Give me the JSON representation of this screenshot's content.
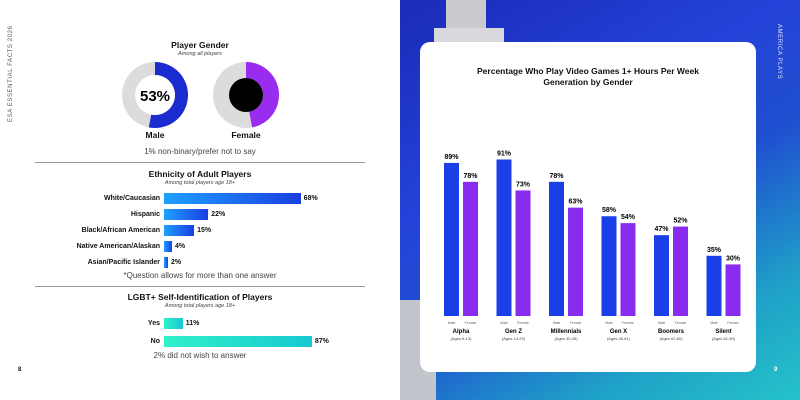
{
  "left_page": {
    "side_label": "ESA ESSENTIAL FACTS 2026",
    "page_number": "8",
    "gender": {
      "title": "Player Gender",
      "subtitle": "Among all players",
      "male_label": "Male",
      "female_label": "Female",
      "male_pct_label": "53%",
      "male_value": 53,
      "female_value": 47,
      "note": "1% non-binary/prefer not to say",
      "colors": {
        "male": "#1a2bd0",
        "female": "#9a2cf0",
        "ring": "#dcdcdc",
        "center": "#000000"
      }
    },
    "ethnicity": {
      "title": "Ethnicity of Adult Players",
      "subtitle": "Among total players age 18+",
      "note": "*Question allows for more than one answer",
      "items": [
        {
          "label": "White/Caucasian",
          "value": 68,
          "value_label": "68%"
        },
        {
          "label": "Hispanic",
          "value": 22,
          "value_label": "22%"
        },
        {
          "label": "Black/African American",
          "value": 15,
          "value_label": "15%"
        },
        {
          "label": "Native American/Alaskan",
          "value": 4,
          "value_label": "4%"
        },
        {
          "label": "Asian/Pacific Islander",
          "value": 2,
          "value_label": "2%"
        }
      ],
      "colors": {
        "from": "#1ea0ff",
        "to": "#1a3fe0"
      }
    },
    "lgbt": {
      "title": "LGBT+ Self-Identification of Players",
      "subtitle": "Among total players age 18+",
      "note": "2% did not wish to answer",
      "items": [
        {
          "label": "Yes",
          "value": 11,
          "value_label": "11%"
        },
        {
          "label": "No",
          "value": 87,
          "value_label": "87%"
        }
      ],
      "colors": {
        "from": "#2ff0c8",
        "to": "#18c9d2"
      }
    }
  },
  "right_page": {
    "side_label": "AMERICA PLAYS",
    "page_number": "9"
  },
  "chart_data": {
    "type": "bar",
    "title": "Percentage Who Play Video Games 1+ Hours Per Week",
    "subtitle": "Generation by Gender",
    "xlabel": "",
    "ylabel": "",
    "ylim": [
      0,
      100
    ],
    "categories": [
      {
        "name": "Alpha",
        "ages": "(Ages 8-13)"
      },
      {
        "name": "Gen Z",
        "ages": "(Ages 14-29)"
      },
      {
        "name": "Millennials",
        "ages": "(Ages 30-45)"
      },
      {
        "name": "Gen X",
        "ages": "(Ages 46-61)"
      },
      {
        "name": "Boomers",
        "ages": "(Ages 62-80)"
      },
      {
        "name": "Silent",
        "ages": "(Ages 81-90)"
      }
    ],
    "series": [
      {
        "name": "Male",
        "values": [
          89,
          91,
          78,
          58,
          47,
          35
        ],
        "labels": [
          "89%",
          "91%",
          "78%",
          "58%",
          "47%",
          "35%"
        ],
        "color": "#1a3fe8"
      },
      {
        "name": "Female",
        "values": [
          78,
          73,
          63,
          54,
          52,
          30
        ],
        "labels": [
          "78%",
          "73%",
          "63%",
          "54%",
          "52%",
          "30%"
        ],
        "color": "#8a2cf0"
      }
    ],
    "grid": false,
    "legend": "per-bar labels below bars"
  }
}
